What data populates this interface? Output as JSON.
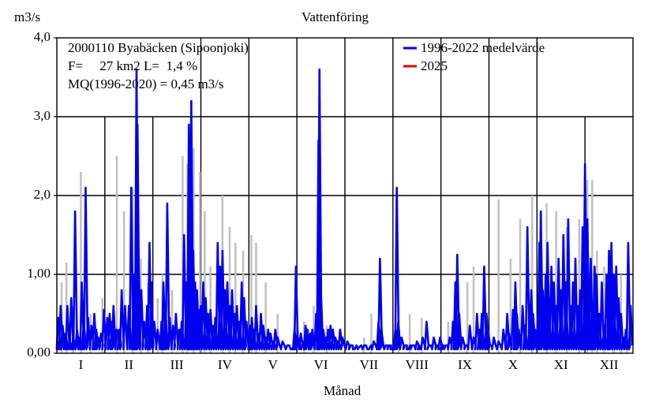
{
  "chart_data": {
    "type": "line",
    "title": "Vattenföring",
    "ylabel": "m3/s",
    "xlabel": "Månad",
    "ylim": [
      0,
      4
    ],
    "y_ticks": [
      "0,00",
      "1,00",
      "2,0",
      "3,0",
      "4,0"
    ],
    "months": [
      "I",
      "II",
      "III",
      "IV",
      "V",
      "VI",
      "VII",
      "VIII",
      "IX",
      "X",
      "XI",
      "XII"
    ],
    "grid": true,
    "legend_position": "top-right",
    "info": {
      "station": "2000110 Byabäcken (Sipoonjoki)",
      "area": "F=     27 km2 L=  1,4 %",
      "mq": "MQ(1996-2020) = 0,45 m3/s"
    },
    "series": [
      {
        "name": "1996-2022 medelvärde",
        "color": "#0000ee",
        "peaks": [
          [
            0.03,
            0.45
          ],
          [
            0.05,
            0.15
          ],
          [
            0.08,
            0.6
          ],
          [
            0.12,
            0.35
          ],
          [
            0.18,
            0.25
          ],
          [
            0.22,
            0.6
          ],
          [
            0.26,
            0.15
          ],
          [
            0.3,
            0.7
          ],
          [
            0.34,
            0.2
          ],
          [
            0.38,
            1.8
          ],
          [
            0.42,
            0.3
          ],
          [
            0.48,
            0.2
          ],
          [
            0.52,
            0.9
          ],
          [
            0.56,
            0.4
          ],
          [
            0.6,
            2.1
          ],
          [
            0.65,
            0.45
          ],
          [
            0.72,
            0.35
          ],
          [
            0.78,
            0.5
          ],
          [
            0.82,
            0.3
          ],
          [
            0.86,
            0.2
          ],
          [
            0.92,
            0.25
          ],
          [
            0.98,
            0.55
          ],
          [
            1.05,
            0.45
          ],
          [
            1.1,
            0.5
          ],
          [
            1.15,
            0.4
          ],
          [
            1.18,
            0.6
          ],
          [
            1.25,
            0.3
          ],
          [
            1.3,
            0.3
          ],
          [
            1.35,
            0.8
          ],
          [
            1.42,
            0.6
          ],
          [
            1.5,
            0.6
          ],
          [
            1.55,
            2.1
          ],
          [
            1.6,
            1.0
          ],
          [
            1.62,
            0.7
          ],
          [
            1.66,
            3.6
          ],
          [
            1.68,
            2.9
          ],
          [
            1.7,
            1.3
          ],
          [
            1.76,
            0.8
          ],
          [
            1.82,
            0.4
          ],
          [
            1.88,
            0.6
          ],
          [
            1.93,
            1.4
          ],
          [
            1.97,
            0.9
          ],
          [
            2.03,
            0.4
          ],
          [
            2.1,
            0.3
          ],
          [
            2.18,
            0.4
          ],
          [
            2.22,
            0.9
          ],
          [
            2.26,
            0.6
          ],
          [
            2.3,
            1.9
          ],
          [
            2.35,
            0.45
          ],
          [
            2.42,
            0.35
          ],
          [
            2.48,
            0.5
          ],
          [
            2.55,
            0.3
          ],
          [
            2.6,
            0.4
          ],
          [
            2.65,
            1.5
          ],
          [
            2.7,
            0.9
          ],
          [
            2.75,
            2.9
          ],
          [
            2.78,
            1.8
          ],
          [
            2.8,
            3.2
          ],
          [
            2.84,
            1.3
          ],
          [
            2.88,
            0.9
          ],
          [
            2.92,
            0.8
          ],
          [
            2.96,
            0.55
          ],
          [
            3.0,
            0.6
          ],
          [
            3.05,
            0.9
          ],
          [
            3.1,
            0.7
          ],
          [
            3.15,
            0.5
          ],
          [
            3.2,
            0.55
          ],
          [
            3.25,
            0.35
          ],
          [
            3.3,
            0.45
          ],
          [
            3.35,
            1.4
          ],
          [
            3.4,
            1.1
          ],
          [
            3.45,
            1.3
          ],
          [
            3.5,
            0.8
          ],
          [
            3.55,
            0.9
          ],
          [
            3.6,
            0.6
          ],
          [
            3.65,
            0.8
          ],
          [
            3.7,
            0.5
          ],
          [
            3.75,
            0.6
          ],
          [
            3.8,
            0.4
          ],
          [
            3.85,
            0.9
          ],
          [
            3.9,
            0.7
          ],
          [
            3.95,
            0.4
          ],
          [
            4.02,
            0.35
          ],
          [
            4.06,
            0.45
          ],
          [
            4.1,
            0.3
          ],
          [
            4.15,
            0.6
          ],
          [
            4.2,
            0.25
          ],
          [
            4.25,
            0.5
          ],
          [
            4.3,
            0.35
          ],
          [
            4.35,
            0.2
          ],
          [
            4.4,
            0.3
          ],
          [
            4.45,
            0.25
          ],
          [
            4.5,
            0.15
          ],
          [
            4.55,
            0.3
          ],
          [
            4.6,
            0.2
          ],
          [
            4.7,
            0.15
          ],
          [
            4.8,
            0.1
          ],
          [
            4.9,
            0.05
          ],
          [
            4.95,
            0.3
          ],
          [
            4.98,
            1.1
          ],
          [
            5.02,
            0.2
          ],
          [
            5.08,
            0.25
          ],
          [
            5.12,
            0.15
          ],
          [
            5.18,
            0.35
          ],
          [
            5.22,
            0.3
          ],
          [
            5.28,
            0.25
          ],
          [
            5.32,
            0.3
          ],
          [
            5.4,
            0.5
          ],
          [
            5.45,
            2.7
          ],
          [
            5.47,
            3.6
          ],
          [
            5.5,
            0.8
          ],
          [
            5.55,
            0.3
          ],
          [
            5.6,
            0.2
          ],
          [
            5.65,
            0.3
          ],
          [
            5.7,
            0.35
          ],
          [
            5.75,
            0.3
          ],
          [
            5.8,
            0.2
          ],
          [
            5.85,
            0.15
          ],
          [
            5.9,
            0.3
          ],
          [
            5.95,
            0.2
          ],
          [
            6.05,
            0.15
          ],
          [
            6.12,
            0.1
          ],
          [
            6.2,
            0.05
          ],
          [
            6.3,
            0.08
          ],
          [
            6.4,
            0.1
          ],
          [
            6.5,
            0.05
          ],
          [
            6.6,
            0.15
          ],
          [
            6.7,
            0.4
          ],
          [
            6.73,
            1.2
          ],
          [
            6.76,
            0.3
          ],
          [
            6.85,
            0.1
          ],
          [
            6.92,
            0.1
          ],
          [
            6.98,
            0.05
          ],
          [
            7.02,
            0.05
          ],
          [
            7.05,
            0.3
          ],
          [
            7.08,
            2.1
          ],
          [
            7.11,
            0.4
          ],
          [
            7.18,
            0.2
          ],
          [
            7.25,
            0.1
          ],
          [
            7.32,
            0.05
          ],
          [
            7.4,
            0.1
          ],
          [
            7.5,
            0.15
          ],
          [
            7.55,
            0.05
          ],
          [
            7.62,
            0.2
          ],
          [
            7.7,
            0.4
          ],
          [
            7.75,
            0.1
          ],
          [
            7.85,
            0.2
          ],
          [
            7.92,
            0.1
          ],
          [
            7.98,
            0.2
          ],
          [
            8.02,
            0.05
          ],
          [
            8.1,
            0.1
          ],
          [
            8.18,
            0.2
          ],
          [
            8.25,
            0.4
          ],
          [
            8.3,
            0.9
          ],
          [
            8.34,
            1.25
          ],
          [
            8.38,
            0.5
          ],
          [
            8.45,
            0.2
          ],
          [
            8.52,
            0.1
          ],
          [
            8.6,
            0.35
          ],
          [
            8.68,
            0.2
          ],
          [
            8.75,
            0.5
          ],
          [
            8.8,
            0.3
          ],
          [
            8.85,
            0.5
          ],
          [
            8.9,
            1.1
          ],
          [
            8.95,
            0.5
          ],
          [
            8.98,
            0.3
          ],
          [
            9.02,
            0.1
          ],
          [
            9.1,
            0.2
          ],
          [
            9.2,
            0.15
          ],
          [
            9.3,
            0.3
          ],
          [
            9.38,
            0.5
          ],
          [
            9.42,
            0.25
          ],
          [
            9.5,
            0.55
          ],
          [
            9.55,
            0.9
          ],
          [
            9.58,
            0.5
          ],
          [
            9.62,
            0.3
          ],
          [
            9.7,
            0.6
          ],
          [
            9.75,
            0.35
          ],
          [
            9.8,
            1.6
          ],
          [
            9.85,
            0.6
          ],
          [
            9.88,
            0.8
          ],
          [
            9.92,
            0.5
          ],
          [
            9.96,
            0.3
          ],
          [
            10.02,
            0.5
          ],
          [
            10.05,
            1.4
          ],
          [
            10.08,
            1.8
          ],
          [
            10.12,
            0.8
          ],
          [
            10.18,
            1.0
          ],
          [
            10.22,
            1.4
          ],
          [
            10.25,
            0.7
          ],
          [
            10.3,
            1.1
          ],
          [
            10.35,
            0.9
          ],
          [
            10.4,
            0.6
          ],
          [
            10.45,
            1.2
          ],
          [
            10.5,
            0.8
          ],
          [
            10.55,
            1.5
          ],
          [
            10.6,
            0.9
          ],
          [
            10.65,
            1.7
          ],
          [
            10.7,
            0.6
          ],
          [
            10.75,
            0.9
          ],
          [
            10.8,
            1.2
          ],
          [
            10.85,
            0.6
          ],
          [
            10.9,
            0.8
          ],
          [
            10.95,
            1.6
          ],
          [
            10.98,
            0.5
          ],
          [
            11.0,
            2.4
          ],
          [
            11.05,
            1.7
          ],
          [
            11.08,
            0.9
          ],
          [
            11.12,
            1.2
          ],
          [
            11.16,
            0.6
          ],
          [
            11.2,
            1.1
          ],
          [
            11.24,
            1.0
          ],
          [
            11.3,
            0.5
          ],
          [
            11.35,
            0.9
          ],
          [
            11.4,
            0.35
          ],
          [
            11.45,
            1.0
          ],
          [
            11.5,
            1.3
          ],
          [
            11.52,
            0.9
          ],
          [
            11.55,
            1.4
          ],
          [
            11.6,
            1.0
          ],
          [
            11.65,
            1.1
          ],
          [
            11.7,
            0.7
          ],
          [
            11.75,
            0.5
          ],
          [
            11.8,
            0.2
          ],
          [
            11.85,
            0.3
          ],
          [
            11.9,
            1.4
          ],
          [
            11.95,
            0.6
          ]
        ]
      },
      {
        "name": "2025",
        "color": "#ee0000",
        "peaks": []
      }
    ],
    "background_series": {
      "color": "#c0c0c0",
      "peaks": [
        [
          0.1,
          0.9
        ],
        [
          0.2,
          1.15
        ],
        [
          0.33,
          0.6
        ],
        [
          0.5,
          2.3
        ],
        [
          0.7,
          0.5
        ],
        [
          0.95,
          0.7
        ],
        [
          1.25,
          2.5
        ],
        [
          1.4,
          1.8
        ],
        [
          1.58,
          2.1
        ],
        [
          1.75,
          1.2
        ],
        [
          1.9,
          0.9
        ],
        [
          2.1,
          0.7
        ],
        [
          2.2,
          1.0
        ],
        [
          2.4,
          0.8
        ],
        [
          2.62,
          2.5
        ],
        [
          2.72,
          2.4
        ],
        [
          2.85,
          2.6
        ],
        [
          2.98,
          2.3
        ],
        [
          3.08,
          1.8
        ],
        [
          3.2,
          1.1
        ],
        [
          3.45,
          2.0
        ],
        [
          3.6,
          1.6
        ],
        [
          3.72,
          1.4
        ],
        [
          3.88,
          1.3
        ],
        [
          4.05,
          1.5
        ],
        [
          4.15,
          1.4
        ],
        [
          4.35,
          0.9
        ],
        [
          4.6,
          0.5
        ],
        [
          5.15,
          0.4
        ],
        [
          5.35,
          0.6
        ],
        [
          5.62,
          0.35
        ],
        [
          6.4,
          0.2
        ],
        [
          6.55,
          0.5
        ],
        [
          7.12,
          0.6
        ],
        [
          7.35,
          0.5
        ],
        [
          7.6,
          0.45
        ],
        [
          8.15,
          0.4
        ],
        [
          8.55,
          0.9
        ],
        [
          8.68,
          1.1
        ],
        [
          9.2,
          1.95
        ],
        [
          9.45,
          1.2
        ],
        [
          9.65,
          1.7
        ],
        [
          9.9,
          2.0
        ],
        [
          10.2,
          1.9
        ],
        [
          10.4,
          1.8
        ],
        [
          10.62,
          1.6
        ],
        [
          10.88,
          1.7
        ],
        [
          11.05,
          2.2
        ],
        [
          11.15,
          2.2
        ],
        [
          11.25,
          1.3
        ],
        [
          11.4,
          1.1
        ],
        [
          11.6,
          0.9
        ],
        [
          11.75,
          1.0
        ],
        [
          11.88,
          0.8
        ]
      ]
    }
  }
}
